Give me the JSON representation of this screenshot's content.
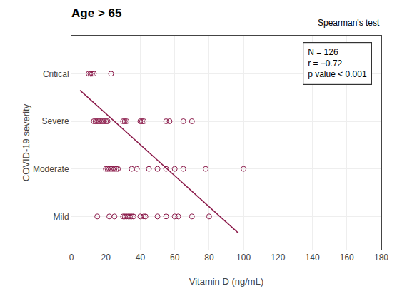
{
  "chart_data": {
    "type": "scatter",
    "title": "Age > 65",
    "subtitle": "Spearman's test",
    "annotations": [
      "N = 126",
      "r = −0.72",
      "p value < 0.001"
    ],
    "xlabel": "Vitamin D (ng/mL)",
    "ylabel": "COVID-19 severity",
    "xlim": [
      0,
      180
    ],
    "xticks": [
      0,
      20,
      40,
      60,
      80,
      100,
      120,
      140,
      160,
      180
    ],
    "ylim": [
      0.3,
      4.8
    ],
    "yticks": [
      {
        "value": 1,
        "label": "Mild"
      },
      {
        "value": 2,
        "label": "Moderate"
      },
      {
        "value": 3,
        "label": "Severe"
      },
      {
        "value": 4,
        "label": "Critical"
      }
    ],
    "grid": true,
    "series": [
      {
        "type": "scatter",
        "marker": "circle-open",
        "color": "#8B1A4A",
        "x": [
          10,
          11,
          12,
          13,
          23,
          13,
          14,
          15,
          16,
          17,
          18,
          19,
          20,
          21,
          30,
          31,
          32,
          40,
          41,
          42,
          55,
          57,
          65,
          70,
          20,
          21,
          22,
          23,
          24,
          25,
          26,
          27,
          35,
          38,
          45,
          50,
          55,
          60,
          65,
          78,
          100,
          15,
          22,
          25,
          30,
          31,
          32,
          33,
          34,
          35,
          36,
          40,
          42,
          43,
          50,
          55,
          60,
          62,
          70,
          80
        ],
        "y": [
          "Critical",
          "Critical",
          "Critical",
          "Critical",
          "Critical",
          "Severe",
          "Severe",
          "Severe",
          "Severe",
          "Severe",
          "Severe",
          "Severe",
          "Severe",
          "Severe",
          "Severe",
          "Severe",
          "Severe",
          "Severe",
          "Severe",
          "Severe",
          "Severe",
          "Severe",
          "Severe",
          "Severe",
          "Moderate",
          "Moderate",
          "Moderate",
          "Moderate",
          "Moderate",
          "Moderate",
          "Moderate",
          "Moderate",
          "Moderate",
          "Moderate",
          "Moderate",
          "Moderate",
          "Moderate",
          "Moderate",
          "Moderate",
          "Moderate",
          "Moderate",
          "Mild",
          "Mild",
          "Mild",
          "Mild",
          "Mild",
          "Mild",
          "Mild",
          "Mild",
          "Mild",
          "Mild",
          "Mild",
          "Mild",
          "Mild",
          "Mild",
          "Mild",
          "Mild",
          "Mild",
          "Mild",
          "Mild"
        ]
      },
      {
        "type": "line",
        "line_style": "solid",
        "color": "#8B1A4A",
        "x": [
          5,
          97
        ],
        "y": [
          3.65,
          0.65
        ]
      }
    ]
  }
}
